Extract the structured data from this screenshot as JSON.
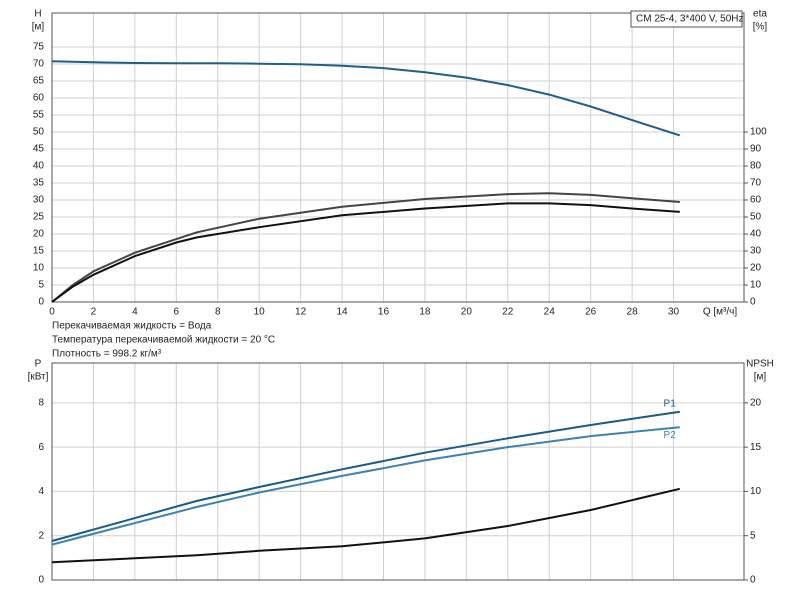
{
  "chart_data": [
    {
      "type": "line",
      "legend_box": "CM 25-4, 3*400 V, 50Hz",
      "ylabel": "H",
      "yunit": "[м]",
      "y2label": "eta",
      "y2unit": "[%]",
      "xlabel": "Q [м³/ч]",
      "notes": [
        "Перекачиваемая жидкость = Вода",
        "Температура перекачиваемой жидкости = 20 °C",
        "Плотность = 998.2 кг/м³"
      ],
      "xlim": [
        0,
        33.4
      ],
      "xticks": [
        0,
        2,
        4,
        6,
        8,
        10,
        12,
        14,
        16,
        18,
        20,
        22,
        24,
        26,
        28,
        30
      ],
      "ylim": [
        0,
        85
      ],
      "yticks": [
        0,
        5,
        10,
        15,
        20,
        25,
        30,
        35,
        40,
        45,
        50,
        55,
        60,
        65,
        70,
        75
      ],
      "y2lim": [
        0,
        170
      ],
      "y2ticks": [
        0,
        10,
        20,
        30,
        40,
        50,
        60,
        70,
        80,
        90,
        100
      ],
      "grid": true,
      "series": [
        {
          "color": "#1f5f8b",
          "x": [
            0,
            2,
            4,
            6,
            7,
            8,
            10,
            12,
            14,
            16,
            18,
            20,
            22,
            24,
            26,
            28,
            30.3
          ],
          "values": [
            70.8,
            70.5,
            70.3,
            70.2,
            70.2,
            70.2,
            70.1,
            69.9,
            69.5,
            68.8,
            67.6,
            66,
            63.8,
            61,
            57.5,
            53.5,
            49
          ]
        },
        {
          "color": "#444444",
          "axis": "y2",
          "x": [
            0,
            1,
            2,
            4,
            6,
            7,
            10,
            14,
            18,
            22,
            24,
            26,
            28,
            30.3
          ],
          "values": [
            0,
            10,
            18,
            29,
            37,
            41,
            49,
            56,
            60.6,
            63.5,
            64,
            63,
            61,
            58.8
          ]
        },
        {
          "color": "#111111",
          "axis": "y2",
          "x": [
            0,
            1,
            2,
            4,
            6,
            7,
            10,
            14,
            18,
            22,
            24,
            26,
            28,
            30.3
          ],
          "values": [
            0,
            9,
            16,
            27,
            35,
            38,
            44,
            51,
            55,
            58,
            58,
            57,
            55,
            53
          ]
        }
      ]
    },
    {
      "type": "line",
      "ylabel": "P",
      "yunit": "[кВт]",
      "y2label": "NPSH",
      "y2unit": "[м]",
      "xlim": [
        0,
        33.4
      ],
      "xticks": [
        0,
        2,
        4,
        6,
        8,
        10,
        12,
        14,
        16,
        18,
        20,
        22,
        24,
        26,
        28,
        30
      ],
      "ylim": [
        0,
        9.8
      ],
      "yticks": [
        0,
        2,
        4,
        6,
        8
      ],
      "y2lim": [
        0,
        24.5
      ],
      "y2ticks": [
        0,
        5,
        10,
        15,
        20
      ],
      "grid": true,
      "series": [
        {
          "name": "P1",
          "color": "#1a5a8a",
          "x": [
            0,
            7,
            10,
            14,
            18,
            22,
            26,
            30.3
          ],
          "values": [
            1.76,
            3.57,
            4.2,
            5.0,
            5.75,
            6.4,
            7.0,
            7.6
          ]
        },
        {
          "name": "P2",
          "color": "#3c82b4",
          "x": [
            0,
            7,
            10,
            14,
            18,
            22,
            26,
            30.3
          ],
          "values": [
            1.6,
            3.3,
            3.95,
            4.7,
            5.4,
            6.0,
            6.5,
            6.9
          ]
        },
        {
          "color": "#111111",
          "axis": "y2",
          "x": [
            0,
            7,
            10,
            14,
            18,
            22,
            26,
            30.3
          ],
          "values": [
            2.0,
            2.8,
            3.3,
            3.8,
            4.7,
            6.1,
            7.9,
            10.3
          ]
        }
      ]
    }
  ]
}
